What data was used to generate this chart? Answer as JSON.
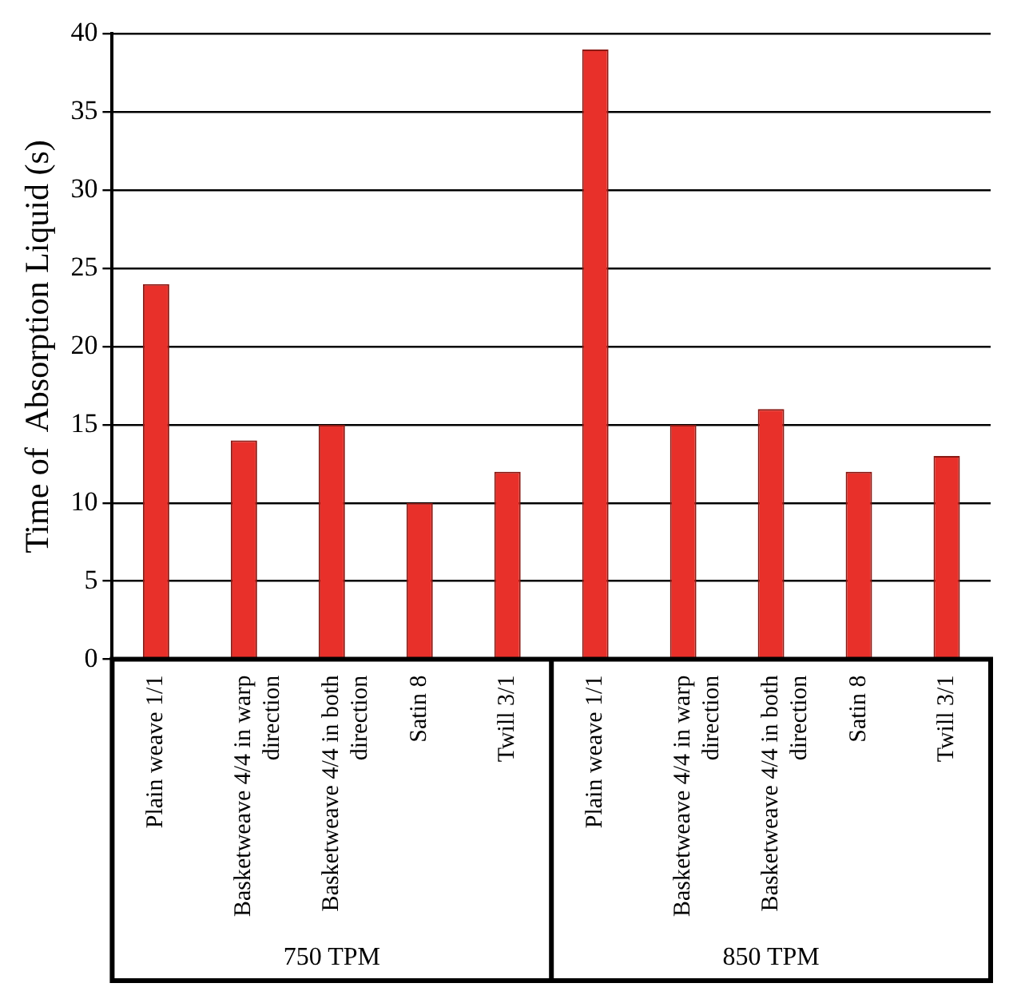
{
  "chart_data": {
    "type": "bar",
    "ylabel": "Time of  Absorption Liquid (s)",
    "categories": [
      "Plain weave 1/1",
      "Basketweave 4/4 in warp direction",
      "Basketweave 4/4 in both direction",
      "Satin 8",
      "Twill 3/1",
      "Plain weave 1/1",
      "Basketweave 4/4 in warp direction",
      "Basketweave 4/4 in both direction",
      "Satin 8",
      "Twill 3/1"
    ],
    "values": [
      24,
      14,
      15,
      10,
      12,
      39,
      15,
      16,
      12,
      13
    ],
    "color": "#e8302a",
    "ylim": [
      0,
      40
    ],
    "yticks": [
      0,
      5,
      10,
      15,
      20,
      25,
      30,
      35,
      40
    ],
    "grid": "y",
    "legend": false,
    "annotations": [
      "750 TPM",
      "850 TPM"
    ]
  }
}
